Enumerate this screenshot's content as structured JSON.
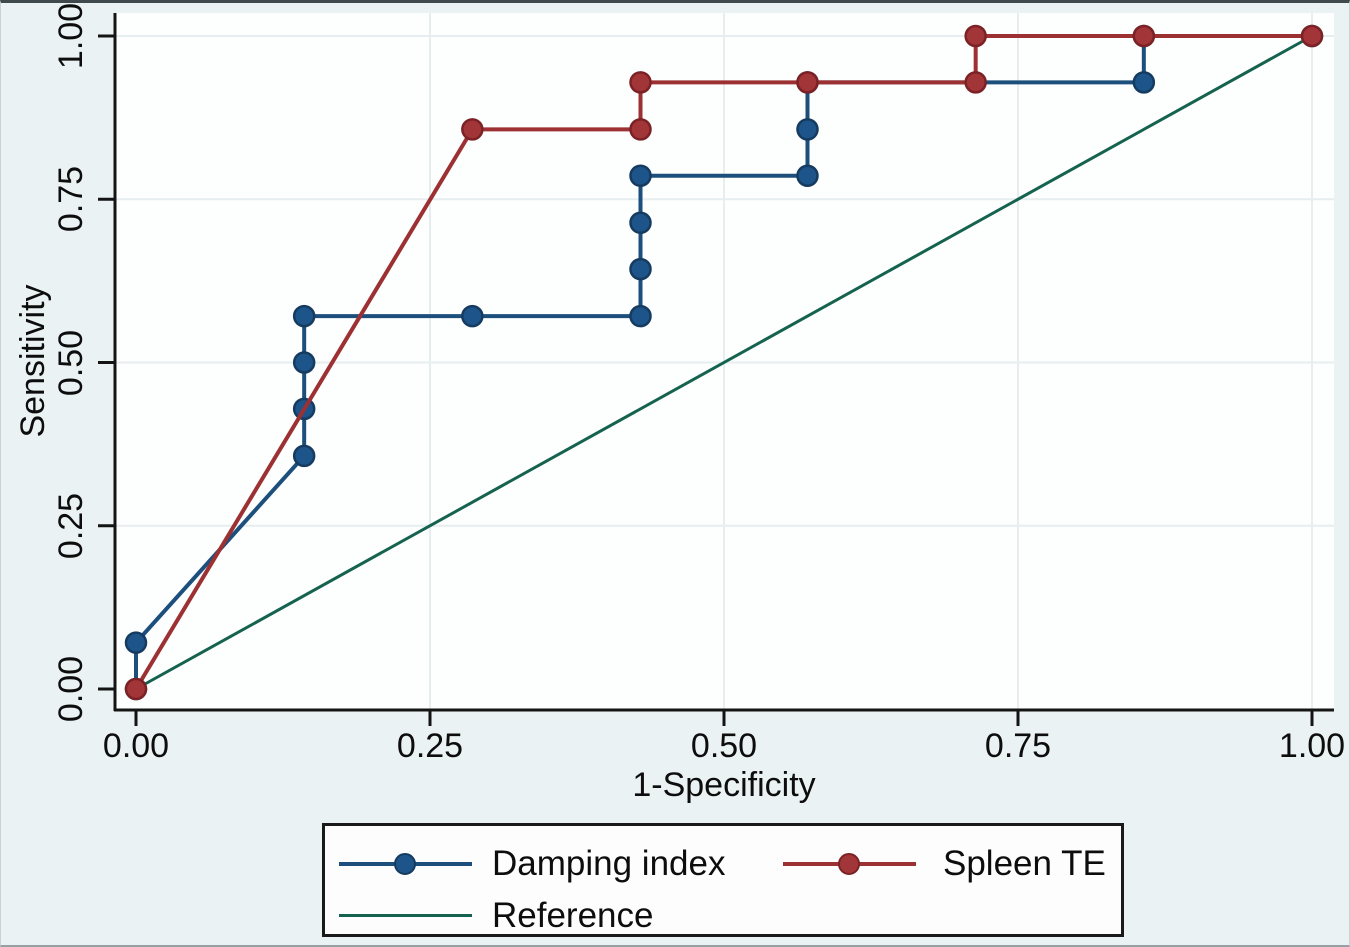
{
  "figure": {
    "background": "#eaf2f3",
    "plot_background": "#fdfefe",
    "grid_color": "#e7eef0",
    "axis_color": "#141414",
    "text_color": "#0d0d0d",
    "legend_border_color": "#1a1a1a",
    "legend_background": "#fdfdfd"
  },
  "chart_data": {
    "type": "line",
    "subtype": "roc-curve",
    "title": "",
    "xlabel": "1-Specificity",
    "ylabel": "Sensitivity",
    "xlim": [
      0,
      1
    ],
    "ylim": [
      0,
      1
    ],
    "x_ticks": [
      "0.00",
      "0.25",
      "0.50",
      "0.75",
      "1.00"
    ],
    "y_ticks": [
      "0.00",
      "0.25",
      "0.50",
      "0.75",
      "1.00"
    ],
    "grid": "on",
    "legend_position": "bottom-box",
    "series": [
      {
        "name": "Reference",
        "color": "#15634e",
        "markers": false,
        "points": [
          [
            0,
            0
          ],
          [
            1,
            1
          ]
        ]
      },
      {
        "name": "Damping index",
        "color": "#1d4f7c",
        "marker_fill": "#1d548a",
        "marker_stroke": "#153c60",
        "markers": true,
        "points": [
          [
            0,
            0
          ],
          [
            0,
            0.071
          ],
          [
            0.143,
            0.357
          ],
          [
            0.143,
            0.429
          ],
          [
            0.143,
            0.5
          ],
          [
            0.143,
            0.571
          ],
          [
            0.286,
            0.571
          ],
          [
            0.429,
            0.571
          ],
          [
            0.429,
            0.643
          ],
          [
            0.429,
            0.714
          ],
          [
            0.429,
            0.786
          ],
          [
            0.571,
            0.786
          ],
          [
            0.571,
            0.857
          ],
          [
            0.571,
            0.929
          ],
          [
            0.857,
            0.929
          ],
          [
            0.857,
            1
          ],
          [
            1,
            1
          ]
        ]
      },
      {
        "name": "Spleen TE",
        "color": "#9d3032",
        "marker_fill": "#a23538",
        "marker_stroke": "#7c2226",
        "markers": true,
        "points": [
          [
            0,
            0
          ],
          [
            0.286,
            0.857
          ],
          [
            0.429,
            0.857
          ],
          [
            0.429,
            0.929
          ],
          [
            0.571,
            0.929
          ],
          [
            0.714,
            0.929
          ],
          [
            0.714,
            1
          ],
          [
            0.857,
            1
          ],
          [
            1,
            1
          ]
        ]
      }
    ]
  }
}
